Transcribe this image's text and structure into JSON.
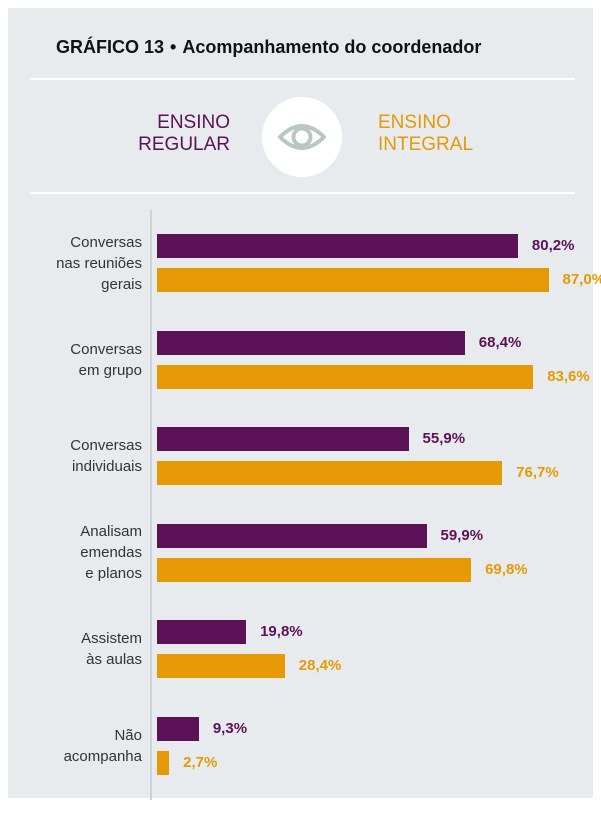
{
  "title": {
    "label": "GRÁFICO 13",
    "separator": "•",
    "text": "Acompanhamento do coordenador"
  },
  "legend": {
    "left": {
      "line1": "ENSINO",
      "line2": "REGULAR"
    },
    "right": {
      "line1": "ENSINO",
      "line2": "INTEGRAL"
    },
    "icon": "eye-icon"
  },
  "colors": {
    "regular": "#5b1257",
    "integral": "#e59a05",
    "background": "#e8ebee"
  },
  "chart_data": {
    "type": "bar",
    "orientation": "horizontal",
    "categories": [
      [
        "Conversas",
        "nas reuniões",
        "gerais"
      ],
      [
        "Conversas",
        "em grupo"
      ],
      [
        "Conversas",
        "individuais"
      ],
      [
        "Analisam",
        "emendas",
        "e planos"
      ],
      [
        "Assistem",
        "às aulas"
      ],
      [
        "Não",
        "acompanha"
      ]
    ],
    "series": [
      {
        "name": "ENSINO REGULAR",
        "values": [
          80.2,
          68.4,
          55.9,
          59.9,
          19.8,
          9.3
        ],
        "labels": [
          "80,2%",
          "68,4%",
          "55,9%",
          "59,9%",
          "19,8%",
          "9,3%"
        ]
      },
      {
        "name": "ENSINO INTEGRAL",
        "values": [
          87.0,
          83.6,
          76.7,
          69.8,
          28.4,
          2.7
        ],
        "labels": [
          "87,0%",
          "83,6%",
          "76,7%",
          "69,8%",
          "28,4%",
          "2,7%"
        ]
      }
    ],
    "xlim": [
      0,
      100
    ],
    "unit": "%",
    "grid": false,
    "legend_position": "top"
  }
}
